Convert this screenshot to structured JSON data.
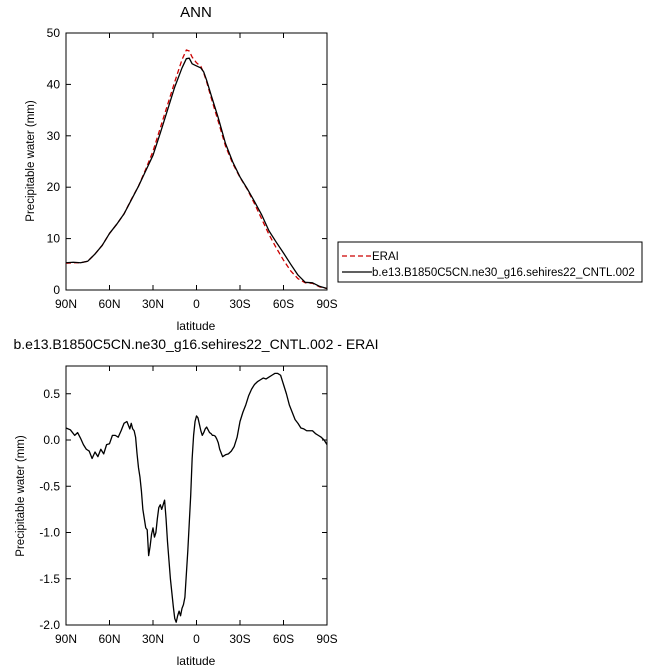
{
  "chart_data": [
    {
      "type": "line",
      "title": "ANN",
      "xlabel": "latitude",
      "ylabel": "Precipitable water (mm)",
      "xlim": [
        90,
        -90
      ],
      "ylim": [
        0,
        50
      ],
      "x_ticks": [
        90,
        60,
        30,
        0,
        -30,
        -60,
        -90
      ],
      "x_tick_labels": [
        "90N",
        "60N",
        "30N",
        "0",
        "30S",
        "60S",
        "90S"
      ],
      "y_ticks": [
        0,
        10,
        20,
        30,
        40,
        50
      ],
      "y_tick_labels": [
        "0",
        "10",
        "20",
        "30",
        "40",
        "50"
      ],
      "grid": false,
      "legend_position": "right",
      "series": [
        {
          "name": "ERAI",
          "color": "#cc0000",
          "style": "dashed",
          "x": [
            90,
            85,
            80,
            75,
            70,
            65,
            60,
            55,
            50,
            45,
            40,
            35,
            30,
            25,
            20,
            15,
            10,
            7,
            5,
            3,
            0,
            -3,
            -5,
            -7,
            -10,
            -15,
            -20,
            -25,
            -30,
            -35,
            -40,
            -45,
            -50,
            -55,
            -60,
            -65,
            -70,
            -75,
            -80,
            -85,
            -90
          ],
          "values": [
            5.2,
            5.3,
            5.3,
            5.6,
            7,
            8.7,
            11,
            12.8,
            14.8,
            17.6,
            20.2,
            23.5,
            27,
            31.5,
            36,
            40.5,
            44.8,
            46.7,
            46.5,
            45.3,
            44.2,
            43.5,
            42.2,
            40.5,
            37.5,
            32.8,
            28,
            24.6,
            21.9,
            19.6,
            16.8,
            13.8,
            10.8,
            8.2,
            5.8,
            3.7,
            2.2,
            1.4,
            1.3,
            0.6,
            0.3
          ]
        },
        {
          "name": "b.e13.B1850C5CN.ne30_g16.sehires22_CNTL.002",
          "color": "#000000",
          "style": "solid",
          "x": [
            90,
            85,
            80,
            75,
            70,
            65,
            60,
            55,
            50,
            45,
            40,
            35,
            30,
            25,
            20,
            15,
            10,
            7,
            5,
            3,
            0,
            -3,
            -5,
            -7,
            -10,
            -15,
            -20,
            -25,
            -30,
            -35,
            -40,
            -45,
            -50,
            -55,
            -60,
            -65,
            -70,
            -75,
            -80,
            -85,
            -90
          ],
          "values": [
            5.3,
            5.4,
            5.3,
            5.6,
            7,
            8.7,
            11,
            12.8,
            14.8,
            17.5,
            20.2,
            23.2,
            26.2,
            30.5,
            35,
            39.5,
            43.2,
            45,
            45.1,
            44,
            43.6,
            43.2,
            42.4,
            40.8,
            38,
            33.5,
            28.5,
            24.9,
            22,
            19.7,
            17.2,
            14.6,
            11.5,
            9.3,
            7.2,
            5,
            2.9,
            1.5,
            1.4,
            0.7,
            0.3
          ]
        }
      ]
    },
    {
      "type": "line",
      "title": "b.e13.B1850C5CN.ne30_g16.sehires22_CNTL.002 - ERAI",
      "xlabel": "latitude",
      "ylabel": "Precipitable water (mm)",
      "xlim": [
        90,
        -90
      ],
      "ylim": [
        -2,
        0.8
      ],
      "x_ticks": [
        90,
        60,
        30,
        0,
        -30,
        -60,
        -90
      ],
      "x_tick_labels": [
        "90N",
        "60N",
        "30N",
        "0",
        "30S",
        "60S",
        "90S"
      ],
      "y_ticks": [
        -2,
        -1.5,
        -1,
        -0.5,
        0,
        0.5
      ],
      "y_tick_labels": [
        "-2.0",
        "-1.5",
        "-1.0",
        "-0.5",
        "0.0",
        "0.5"
      ],
      "grid": false,
      "series": [
        {
          "color": "#000000",
          "style": "solid",
          "x": [
            90,
            87,
            84,
            82,
            80,
            78,
            76,
            74,
            72,
            70,
            68,
            66,
            64,
            62,
            60,
            58,
            56,
            54,
            52,
            50,
            48,
            46,
            45,
            44,
            43,
            42,
            41,
            40,
            39,
            38,
            37,
            36,
            35,
            34,
            33,
            32,
            31,
            30,
            29,
            28,
            27,
            26,
            25,
            24,
            23,
            22,
            21,
            20,
            19,
            18,
            17,
            16,
            15,
            14,
            13,
            12,
            11,
            10,
            9,
            8,
            7,
            6,
            5,
            4,
            3,
            2,
            1,
            0,
            -1,
            -2,
            -3,
            -4,
            -5,
            -6,
            -7,
            -8,
            -9,
            -10,
            -11,
            -12,
            -13,
            -14,
            -15,
            -16,
            -18,
            -20,
            -22,
            -24,
            -26,
            -28,
            -30,
            -32,
            -34,
            -36,
            -38,
            -40,
            -42,
            -44,
            -46,
            -48,
            -50,
            -52,
            -54,
            -56,
            -58,
            -60,
            -62,
            -64,
            -66,
            -68,
            -70,
            -72,
            -74,
            -76,
            -78,
            -80,
            -82,
            -84,
            -86,
            -88,
            -90
          ],
          "values": [
            0.13,
            0.11,
            0.05,
            0.08,
            0.02,
            -0.05,
            -0.1,
            -0.12,
            -0.2,
            -0.13,
            -0.18,
            -0.1,
            -0.15,
            -0.05,
            -0.04,
            0.05,
            0.05,
            0.03,
            0.1,
            0.18,
            0.2,
            0.12,
            0.18,
            0.12,
            0.1,
            0.03,
            -0.15,
            -0.3,
            -0.4,
            -0.55,
            -0.75,
            -0.85,
            -0.95,
            -0.97,
            -1.25,
            -1.15,
            -1.02,
            -0.95,
            -1.05,
            -1.0,
            -0.85,
            -0.73,
            -0.7,
            -0.75,
            -0.7,
            -0.65,
            -0.85,
            -1.1,
            -1.3,
            -1.5,
            -1.65,
            -1.8,
            -1.93,
            -1.97,
            -1.9,
            -1.85,
            -1.9,
            -1.82,
            -1.78,
            -1.7,
            -1.45,
            -1.2,
            -0.9,
            -0.6,
            -0.2,
            0.05,
            0.2,
            0.26,
            0.24,
            0.17,
            0.1,
            0.05,
            0.08,
            0.12,
            0.14,
            0.11,
            0.08,
            0.07,
            0.05,
            0.05,
            0.04,
            0.01,
            -0.03,
            -0.1,
            -0.18,
            -0.16,
            -0.15,
            -0.12,
            -0.07,
            0.03,
            0.2,
            0.3,
            0.38,
            0.48,
            0.55,
            0.6,
            0.63,
            0.65,
            0.67,
            0.66,
            0.68,
            0.7,
            0.72,
            0.72,
            0.7,
            0.6,
            0.5,
            0.38,
            0.3,
            0.22,
            0.18,
            0.13,
            0.12,
            0.1,
            0.1,
            0.1,
            0.07,
            0.05,
            0.03,
            0.0,
            -0.05
          ]
        }
      ]
    }
  ]
}
